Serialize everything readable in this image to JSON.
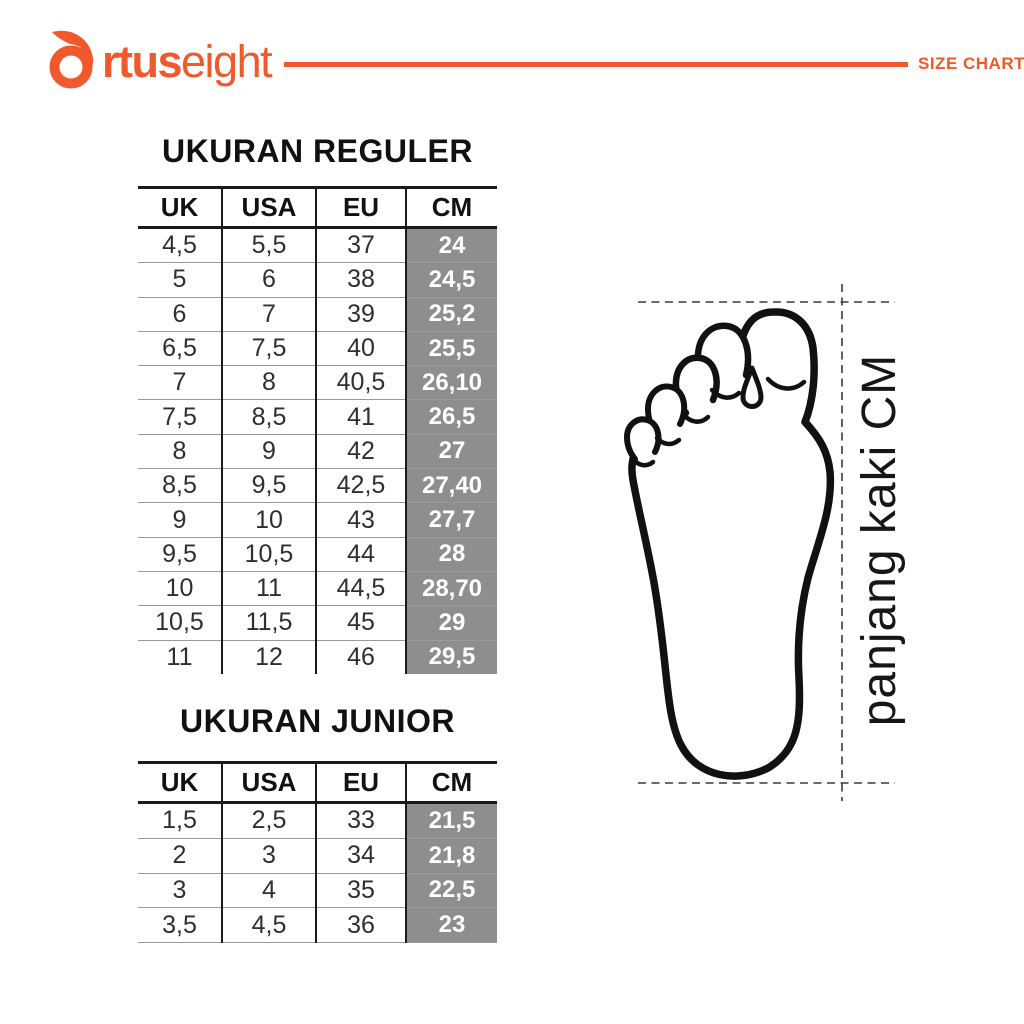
{
  "brand": {
    "logo_text_bold": "rtus",
    "logo_text_light": "eight",
    "header_label": "SIZE CHART",
    "accent_color": "#F1582C"
  },
  "sections": {
    "reguler": {
      "title": "UKURAN REGULER",
      "headers": [
        "UK",
        "USA",
        "EU",
        "CM"
      ],
      "rows": [
        [
          "4,5",
          "5,5",
          "37",
          "24"
        ],
        [
          "5",
          "6",
          "38",
          "24,5"
        ],
        [
          "6",
          "7",
          "39",
          "25,2"
        ],
        [
          "6,5",
          "7,5",
          "40",
          "25,5"
        ],
        [
          "7",
          "8",
          "40,5",
          "26,10"
        ],
        [
          "7,5",
          "8,5",
          "41",
          "26,5"
        ],
        [
          "8",
          "9",
          "42",
          "27"
        ],
        [
          "8,5",
          "9,5",
          "42,5",
          "27,40"
        ],
        [
          "9",
          "10",
          "43",
          "27,7"
        ],
        [
          "9,5",
          "10,5",
          "44",
          "28"
        ],
        [
          "10",
          "11",
          "44,5",
          "28,70"
        ],
        [
          "10,5",
          "11,5",
          "45",
          "29"
        ],
        [
          "11",
          "12",
          "46",
          "29,5"
        ]
      ]
    },
    "junior": {
      "title": "UKURAN JUNIOR",
      "headers": [
        "UK",
        "USA",
        "EU",
        "CM"
      ],
      "rows": [
        [
          "1,5",
          "2,5",
          "33",
          "21,5"
        ],
        [
          "2",
          "3",
          "34",
          "21,8"
        ],
        [
          "3",
          "4",
          "35",
          "22,5"
        ],
        [
          "3,5",
          "4,5",
          "36",
          "23"
        ]
      ]
    }
  },
  "figure": {
    "label": "panjang kaki CM",
    "foot_icon": "foot-outline"
  },
  "colors": {
    "accent": "#F1582C",
    "cm_cell_bg": "#8E8E8E",
    "cm_cell_text": "#FFFFFF",
    "table_border": "#1A1A1A",
    "row_divider": "#9A9A9A"
  }
}
